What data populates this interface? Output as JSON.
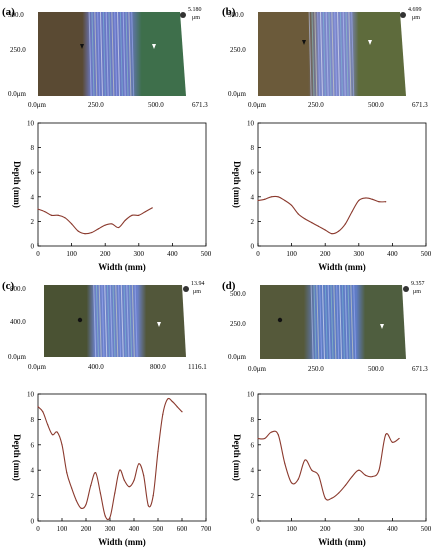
{
  "figure": {
    "panels": [
      {
        "letter": "(a)",
        "scan": {
          "y_ticks": [
            "500.0",
            "250.0",
            "0.0μm"
          ],
          "x_ticks": [
            "0.0μm",
            "250.0",
            "500.0",
            "671.3"
          ],
          "z_max": "5.180",
          "z_unit": "μm",
          "colors": {
            "surface_left": "#5a4a33",
            "surface_right": "#3e6f4b",
            "track": "#6a78c4"
          }
        }
      },
      {
        "letter": "(b)",
        "scan": {
          "y_ticks": [
            "500.0",
            "250.0",
            "0.0μm"
          ],
          "x_ticks": [
            "0.0μm",
            "250.0",
            "500.0",
            "671.3"
          ],
          "z_max": "4.699",
          "z_unit": "μm",
          "colors": {
            "surface_left": "#6b5a3a",
            "surface_right": "#5e6b3c",
            "track": "#7b86c8"
          }
        }
      },
      {
        "letter": "(c)",
        "scan": {
          "y_ticks": [
            "800.0",
            "400.0",
            "0.0μm"
          ],
          "x_ticks": [
            "0.0μm",
            "400.0",
            "800.0",
            "1116.1"
          ],
          "z_max": "13.94",
          "z_unit": "μm",
          "colors": {
            "surface_left": "#4a5233",
            "surface_right": "#52573a",
            "track": "#6b80c8"
          }
        }
      },
      {
        "letter": "(d)",
        "scan": {
          "y_ticks": [
            "500.0",
            "250.0",
            "0.0μm"
          ],
          "x_ticks": [
            "0.0μm",
            "250.0",
            "500.0",
            "671.3"
          ],
          "z_max": "9.357",
          "z_unit": "μm",
          "colors": {
            "surface_left": "#55593a",
            "surface_right": "#4f5e3f",
            "track": "#5f7cc4"
          }
        }
      }
    ]
  },
  "chart_data": [
    {
      "type": "line",
      "panel": "(a)",
      "xlabel": "Width (mm)",
      "ylabel": "Depth (mm)",
      "xlim": [
        0,
        500
      ],
      "ylim": [
        0,
        10
      ],
      "xticks": [
        0,
        100,
        200,
        300,
        400,
        500
      ],
      "yticks": [
        0,
        2,
        4,
        6,
        8,
        10
      ],
      "line_color": "#8b3a2e",
      "x": [
        0,
        20,
        40,
        60,
        80,
        100,
        120,
        140,
        160,
        180,
        200,
        220,
        240,
        260,
        280,
        300,
        320,
        340
      ],
      "y": [
        3.0,
        2.8,
        2.5,
        2.5,
        2.3,
        1.8,
        1.2,
        1.0,
        1.1,
        1.4,
        1.7,
        1.8,
        1.5,
        2.1,
        2.5,
        2.5,
        2.8,
        3.1
      ]
    },
    {
      "type": "line",
      "panel": "(b)",
      "xlabel": "Width (mm)",
      "ylabel": "Depth (mm)",
      "xlim": [
        0,
        500
      ],
      "ylim": [
        0,
        10
      ],
      "xticks": [
        0,
        100,
        200,
        300,
        400,
        500
      ],
      "yticks": [
        0,
        2,
        4,
        6,
        8,
        10
      ],
      "line_color": "#8b3a2e",
      "x": [
        0,
        20,
        40,
        60,
        80,
        100,
        120,
        140,
        160,
        180,
        200,
        220,
        240,
        260,
        280,
        300,
        320,
        340,
        360,
        380
      ],
      "y": [
        3.7,
        3.8,
        4.0,
        4.0,
        3.7,
        3.3,
        2.6,
        2.2,
        1.9,
        1.6,
        1.3,
        1.0,
        1.2,
        1.8,
        2.8,
        3.7,
        3.9,
        3.8,
        3.6,
        3.6
      ]
    },
    {
      "type": "line",
      "panel": "(c)",
      "xlabel": "Width (mm)",
      "ylabel": "Depth (mm)",
      "xlim": [
        0,
        700
      ],
      "ylim": [
        0,
        10
      ],
      "xticks": [
        0,
        100,
        200,
        300,
        400,
        500,
        600,
        700
      ],
      "yticks": [
        0,
        2,
        4,
        6,
        8,
        10
      ],
      "line_color": "#8b3a2e",
      "x": [
        0,
        20,
        40,
        60,
        80,
        100,
        120,
        140,
        160,
        180,
        200,
        220,
        240,
        260,
        280,
        300,
        320,
        340,
        360,
        380,
        400,
        420,
        440,
        460,
        480,
        500,
        520,
        540,
        560,
        580,
        600
      ],
      "y": [
        9.0,
        8.6,
        7.6,
        6.8,
        7.0,
        6.0,
        3.8,
        2.6,
        1.6,
        1.0,
        1.3,
        2.8,
        3.8,
        2.2,
        0.4,
        0.3,
        2.2,
        4.0,
        3.2,
        2.7,
        3.2,
        4.5,
        3.6,
        1.2,
        2.0,
        5.5,
        8.4,
        9.6,
        9.4,
        9.0,
        8.6
      ]
    },
    {
      "type": "line",
      "panel": "(d)",
      "xlabel": "Width (mm)",
      "ylabel": "Depth (mm)",
      "xlim": [
        0,
        500
      ],
      "ylim": [
        0,
        10
      ],
      "xticks": [
        0,
        100,
        200,
        300,
        400,
        500
      ],
      "yticks": [
        0,
        2,
        4,
        6,
        8,
        10
      ],
      "line_color": "#8b3a2e",
      "x": [
        0,
        20,
        40,
        60,
        80,
        100,
        120,
        140,
        160,
        180,
        200,
        220,
        240,
        260,
        280,
        300,
        320,
        340,
        360,
        380,
        400,
        420
      ],
      "y": [
        6.5,
        6.5,
        7.0,
        6.8,
        4.5,
        3.0,
        3.3,
        4.8,
        4.0,
        3.6,
        1.8,
        1.8,
        2.2,
        2.8,
        3.5,
        4.0,
        3.6,
        3.5,
        4.0,
        6.8,
        6.2,
        6.5
      ]
    }
  ]
}
